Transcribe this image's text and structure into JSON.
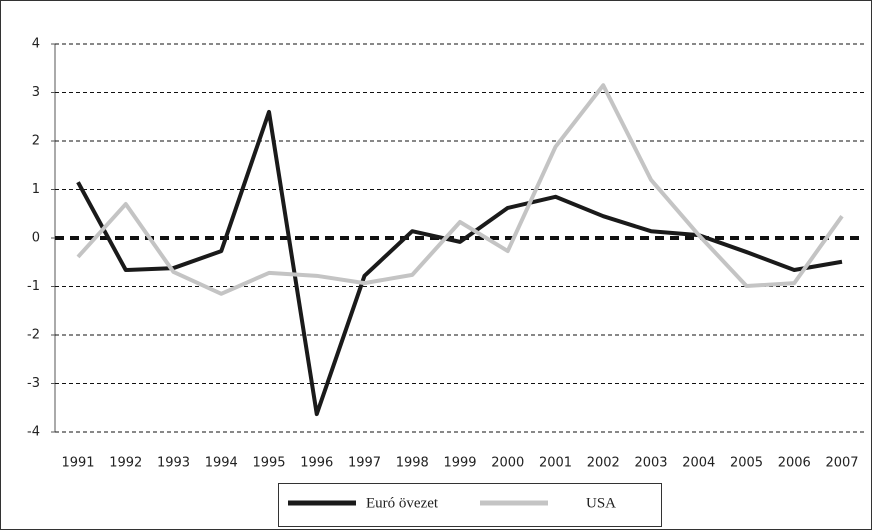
{
  "chart_data": {
    "type": "line",
    "categories": [
      "1991",
      "1992",
      "1993",
      "1994",
      "1995",
      "1996",
      "1997",
      "1998",
      "1999",
      "2000",
      "2001",
      "2002",
      "2003",
      "2004",
      "2005",
      "2006",
      "2007"
    ],
    "series": [
      {
        "name": "Euró övezet",
        "color": "#1a1a1a",
        "values": [
          1.15,
          -0.66,
          -0.62,
          -0.27,
          2.6,
          -3.63,
          -0.78,
          0.14,
          -0.08,
          0.62,
          0.85,
          0.45,
          0.14,
          0.06,
          -0.29,
          -0.66,
          -0.49
        ]
      },
      {
        "name": "USA",
        "color": "#c4c4c4",
        "values": [
          -0.39,
          0.7,
          -0.7,
          -1.15,
          -0.72,
          -0.78,
          -0.93,
          -0.76,
          0.33,
          -0.27,
          1.88,
          3.15,
          1.2,
          0.06,
          -0.99,
          -0.93,
          0.45
        ]
      }
    ],
    "ylim": [
      -4,
      4
    ],
    "yticks": [
      -4,
      -3,
      -2,
      -1,
      0,
      1,
      2,
      3,
      4
    ],
    "grid": true,
    "legend": "bottom"
  }
}
